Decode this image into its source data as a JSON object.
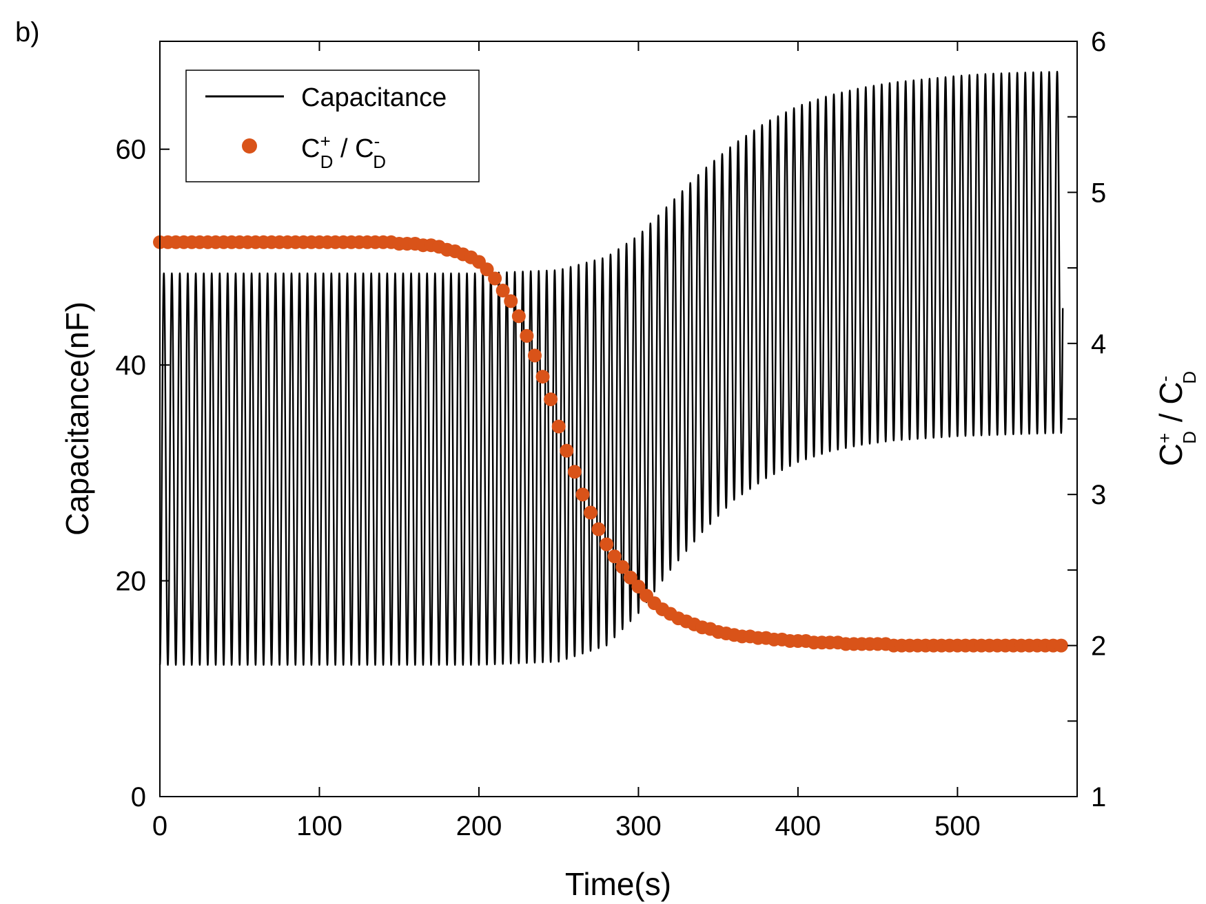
{
  "panel_label": "b)",
  "colors": {
    "capacitance": "#000000",
    "ratio": "#D95319",
    "axes": "#000000",
    "background": "#ffffff"
  },
  "chart_data": {
    "type": "line",
    "title": "",
    "xlabel": "Time(s)",
    "ylabel_left": "Capacitance(nF)",
    "ylabel_right": {
      "base": "C",
      "sup_plus": "+",
      "sub_plus": "D",
      "separator": " / ",
      "sup_minus": "-",
      "sub_minus": "D"
    },
    "xlim": [
      0,
      575
    ],
    "ylim_left": [
      0,
      70
    ],
    "ylim_right": [
      1,
      6
    ],
    "x_ticks": [
      0,
      100,
      200,
      300,
      400,
      500
    ],
    "y_left_ticks": [
      0,
      20,
      40,
      60
    ],
    "y_right_ticks": [
      1,
      2,
      3,
      4,
      5,
      6
    ],
    "grid": false,
    "legend_position": "top-left",
    "legend": {
      "capacitance": "Capacitance",
      "ratio": {
        "base": "C",
        "sup_plus": "+",
        "sub_plus": "D",
        "separator": " / ",
        "sup_minus": "-",
        "sub_minus": "D"
      }
    },
    "series": [
      {
        "name": "Capacitance",
        "axis": "left",
        "style": "oscillating-line",
        "oscillation_period_s": 5,
        "envelope_time": [
          0,
          200,
          250,
          280,
          300,
          320,
          340,
          360,
          380,
          400,
          420,
          440,
          460,
          480,
          500,
          520,
          540,
          566
        ],
        "envelope_max": [
          48.5,
          48.5,
          48.8,
          50,
          52,
          55,
          58,
          60.5,
          62.5,
          64,
          65,
          65.7,
          66.2,
          66.5,
          66.8,
          67,
          67.1,
          67.2
        ],
        "envelope_min": [
          12.2,
          12.2,
          12.5,
          14,
          17,
          21,
          24.5,
          27.5,
          29.5,
          31,
          32,
          32.6,
          33,
          33.2,
          33.4,
          33.5,
          33.6,
          33.7
        ]
      },
      {
        "name": "C_D+ / C_D-",
        "axis": "right",
        "style": "markers",
        "x": [
          0,
          5,
          10,
          15,
          20,
          25,
          30,
          35,
          40,
          45,
          50,
          55,
          60,
          65,
          70,
          75,
          80,
          85,
          90,
          95,
          100,
          105,
          110,
          115,
          120,
          125,
          130,
          135,
          140,
          145,
          150,
          155,
          160,
          165,
          170,
          175,
          180,
          185,
          190,
          195,
          200,
          205,
          210,
          215,
          220,
          225,
          230,
          235,
          240,
          245,
          250,
          255,
          260,
          265,
          270,
          275,
          280,
          285,
          290,
          295,
          300,
          305,
          310,
          315,
          320,
          325,
          330,
          335,
          340,
          345,
          350,
          355,
          360,
          365,
          370,
          375,
          380,
          385,
          390,
          395,
          400,
          405,
          410,
          415,
          420,
          425,
          430,
          435,
          440,
          445,
          450,
          455,
          460,
          465,
          470,
          475,
          480,
          485,
          490,
          495,
          500,
          505,
          510,
          515,
          520,
          525,
          530,
          535,
          540,
          545,
          550,
          555,
          560,
          565
        ],
        "y": [
          4.67,
          4.67,
          4.67,
          4.67,
          4.67,
          4.67,
          4.67,
          4.67,
          4.67,
          4.67,
          4.67,
          4.67,
          4.67,
          4.67,
          4.67,
          4.67,
          4.67,
          4.67,
          4.67,
          4.67,
          4.67,
          4.67,
          4.67,
          4.67,
          4.67,
          4.67,
          4.67,
          4.67,
          4.67,
          4.67,
          4.66,
          4.66,
          4.66,
          4.65,
          4.65,
          4.64,
          4.62,
          4.61,
          4.59,
          4.57,
          4.54,
          4.49,
          4.43,
          4.35,
          4.28,
          4.18,
          4.05,
          3.92,
          3.78,
          3.63,
          3.45,
          3.29,
          3.15,
          3.0,
          2.88,
          2.77,
          2.67,
          2.59,
          2.52,
          2.45,
          2.39,
          2.33,
          2.28,
          2.24,
          2.21,
          2.18,
          2.16,
          2.14,
          2.12,
          2.11,
          2.09,
          2.08,
          2.07,
          2.06,
          2.06,
          2.05,
          2.05,
          2.04,
          2.04,
          2.03,
          2.03,
          2.03,
          2.02,
          2.02,
          2.02,
          2.02,
          2.01,
          2.01,
          2.01,
          2.01,
          2.01,
          2.01,
          2.0,
          2.0,
          2.0,
          2.0,
          2.0,
          2.0,
          2.0,
          2.0,
          2.0,
          2.0,
          2.0,
          2.0,
          2.0,
          2.0,
          2.0,
          2.0,
          2.0,
          2.0,
          2.0,
          2.0,
          2.0,
          2.0
        ]
      }
    ]
  }
}
